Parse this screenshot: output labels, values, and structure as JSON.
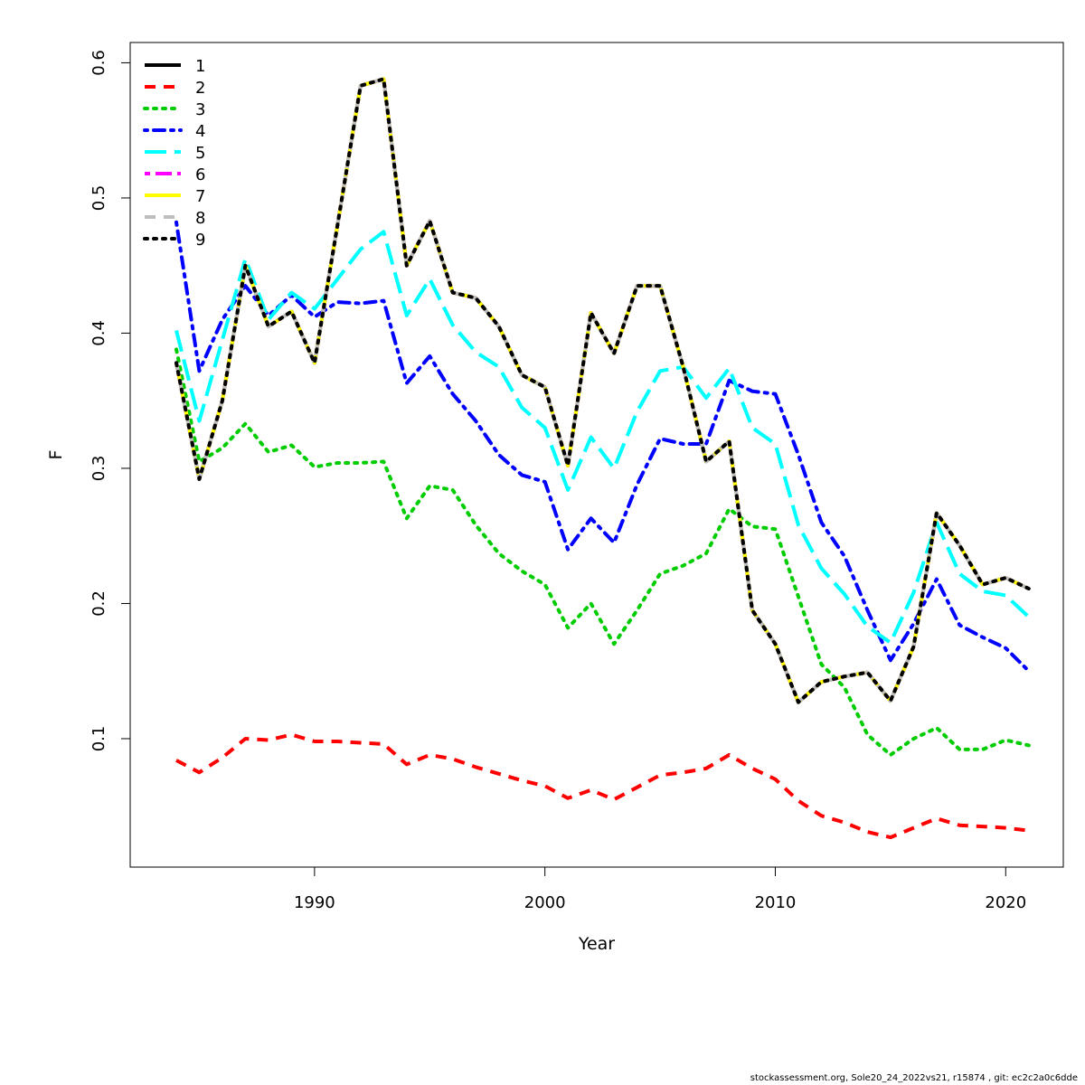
{
  "chart_data": {
    "type": "line",
    "title": "",
    "xlabel": "Year",
    "ylabel": "F",
    "xlim": [
      1982,
      2022.5
    ],
    "ylim": [
      0.005,
      0.615
    ],
    "xticks": [
      1990,
      2000,
      2010,
      2020
    ],
    "yticks": [
      0.1,
      0.2,
      0.3,
      0.4,
      0.5,
      0.6
    ],
    "grid": false,
    "legend_position": "top-left",
    "x": [
      1984,
      1985,
      1986,
      1987,
      1988,
      1989,
      1990,
      1991,
      1992,
      1993,
      1994,
      1995,
      1996,
      1997,
      1998,
      1999,
      2000,
      2001,
      2002,
      2003,
      2004,
      2005,
      2006,
      2007,
      2008,
      2009,
      2010,
      2011,
      2012,
      2013,
      2014,
      2015,
      2016,
      2017,
      2018,
      2019,
      2020,
      2021
    ],
    "series": [
      {
        "name": "1",
        "color": "#000000",
        "dash": "solid",
        "values": [
          0.378,
          0.292,
          0.35,
          0.45,
          0.405,
          0.416,
          0.378,
          0.48,
          0.583,
          0.588,
          0.45,
          0.483,
          0.43,
          0.426,
          0.405,
          0.369,
          0.36,
          0.302,
          0.415,
          0.385,
          0.435,
          0.435,
          0.375,
          0.305,
          0.32,
          0.195,
          0.17,
          0.127,
          0.142,
          0.146,
          0.149,
          0.128,
          0.168,
          0.267,
          0.243,
          0.214,
          0.219,
          0.211
        ]
      },
      {
        "name": "2",
        "color": "#ff0000",
        "dash": "dashed",
        "values": [
          0.084,
          0.075,
          0.086,
          0.1,
          0.099,
          0.103,
          0.098,
          0.098,
          0.097,
          0.096,
          0.081,
          0.088,
          0.085,
          0.079,
          0.074,
          0.069,
          0.065,
          0.056,
          0.062,
          0.055,
          0.064,
          0.073,
          0.075,
          0.078,
          0.088,
          0.078,
          0.07,
          0.054,
          0.043,
          0.038,
          0.031,
          0.027,
          0.034,
          0.041,
          0.036,
          0.035,
          0.034,
          0.032
        ]
      },
      {
        "name": "3",
        "color": "#00cd00",
        "dash": "dotted",
        "values": [
          0.388,
          0.305,
          0.315,
          0.333,
          0.312,
          0.317,
          0.301,
          0.304,
          0.304,
          0.305,
          0.263,
          0.287,
          0.284,
          0.258,
          0.237,
          0.224,
          0.214,
          0.182,
          0.2,
          0.17,
          0.195,
          0.222,
          0.228,
          0.237,
          0.27,
          0.257,
          0.255,
          0.205,
          0.155,
          0.138,
          0.103,
          0.088,
          0.1,
          0.108,
          0.092,
          0.092,
          0.099,
          0.095
        ]
      },
      {
        "name": "4",
        "color": "#0000ff",
        "dash": "dotdash",
        "values": [
          0.482,
          0.372,
          0.41,
          0.435,
          0.413,
          0.428,
          0.412,
          0.423,
          0.422,
          0.424,
          0.363,
          0.383,
          0.355,
          0.335,
          0.31,
          0.295,
          0.29,
          0.24,
          0.263,
          0.245,
          0.288,
          0.322,
          0.318,
          0.318,
          0.365,
          0.357,
          0.355,
          0.31,
          0.26,
          0.235,
          0.195,
          0.158,
          0.185,
          0.218,
          0.184,
          0.175,
          0.167,
          0.15
        ]
      },
      {
        "name": "5",
        "color": "#00ffff",
        "dash": "longdash",
        "values": [
          0.402,
          0.335,
          0.395,
          0.455,
          0.41,
          0.43,
          0.418,
          0.44,
          0.462,
          0.475,
          0.413,
          0.44,
          0.406,
          0.386,
          0.375,
          0.345,
          0.33,
          0.284,
          0.323,
          0.3,
          0.342,
          0.372,
          0.375,
          0.352,
          0.374,
          0.33,
          0.318,
          0.258,
          0.226,
          0.207,
          0.183,
          0.171,
          0.208,
          0.26,
          0.222,
          0.209,
          0.206,
          0.19
        ]
      },
      {
        "name": "6",
        "color": "#ff00ff",
        "dash": "twodash",
        "values": [
          0.378,
          0.292,
          0.35,
          0.45,
          0.405,
          0.416,
          0.378,
          0.48,
          0.583,
          0.588,
          0.45,
          0.483,
          0.43,
          0.426,
          0.405,
          0.369,
          0.36,
          0.302,
          0.415,
          0.385,
          0.435,
          0.435,
          0.375,
          0.305,
          0.32,
          0.195,
          0.17,
          0.127,
          0.142,
          0.146,
          0.149,
          0.128,
          0.168,
          0.267,
          0.243,
          0.214,
          0.219,
          0.211
        ]
      },
      {
        "name": "7",
        "color": "#ffff00",
        "dash": "solid",
        "values": [
          0.378,
          0.292,
          0.35,
          0.45,
          0.405,
          0.416,
          0.378,
          0.48,
          0.583,
          0.588,
          0.45,
          0.483,
          0.43,
          0.426,
          0.405,
          0.369,
          0.36,
          0.302,
          0.415,
          0.385,
          0.435,
          0.435,
          0.375,
          0.305,
          0.32,
          0.195,
          0.17,
          0.127,
          0.142,
          0.146,
          0.149,
          0.128,
          0.168,
          0.267,
          0.243,
          0.214,
          0.219,
          0.211
        ]
      },
      {
        "name": "8",
        "color": "#bebebe",
        "dash": "dashed",
        "values": [
          0.378,
          0.292,
          0.35,
          0.45,
          0.405,
          0.416,
          0.378,
          0.48,
          0.583,
          0.588,
          0.45,
          0.483,
          0.43,
          0.426,
          0.405,
          0.369,
          0.36,
          0.302,
          0.415,
          0.385,
          0.435,
          0.435,
          0.375,
          0.305,
          0.32,
          0.195,
          0.17,
          0.127,
          0.142,
          0.146,
          0.149,
          0.128,
          0.168,
          0.267,
          0.243,
          0.214,
          0.219,
          0.211
        ]
      },
      {
        "name": "9",
        "color": "#000000",
        "dash": "dotted",
        "values": [
          0.378,
          0.292,
          0.35,
          0.45,
          0.405,
          0.416,
          0.378,
          0.48,
          0.583,
          0.588,
          0.45,
          0.483,
          0.43,
          0.426,
          0.405,
          0.369,
          0.36,
          0.302,
          0.415,
          0.385,
          0.435,
          0.435,
          0.375,
          0.305,
          0.32,
          0.195,
          0.17,
          0.127,
          0.142,
          0.146,
          0.149,
          0.128,
          0.168,
          0.267,
          0.243,
          0.214,
          0.219,
          0.211
        ]
      }
    ]
  },
  "footer_text": "stockassessment.org, Sole20_24_2022vs21, r15874 , git: ec2c2a0c6dde"
}
